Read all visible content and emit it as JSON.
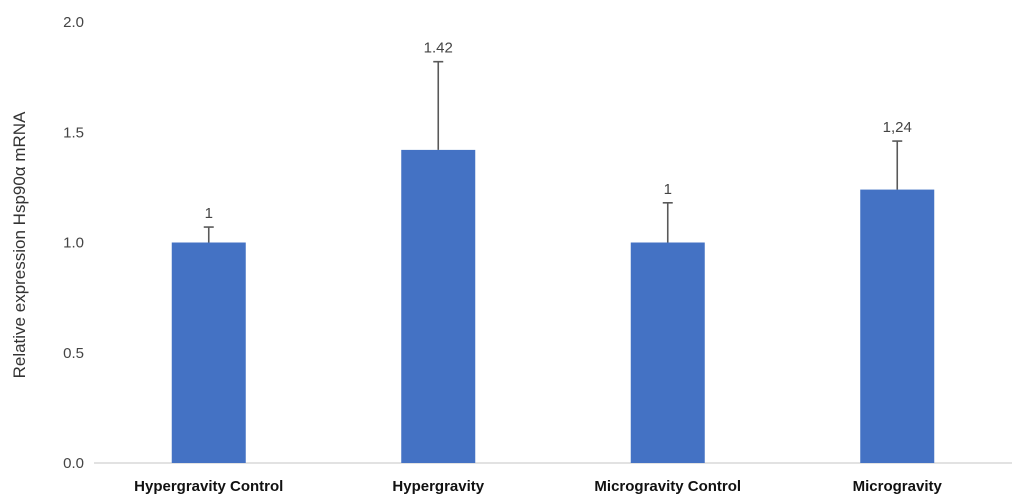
{
  "chart_data": {
    "type": "bar",
    "title": "",
    "xlabel": "",
    "ylabel": "Relative expression Hsp90α mRNA",
    "ylim": [
      0,
      2.0
    ],
    "yticks": [
      0.0,
      0.5,
      1.0,
      1.5,
      2.0
    ],
    "ytick_labels": [
      "0.0",
      "0.5",
      "1.0",
      "1.5",
      "2.0"
    ],
    "categories": [
      "Hypergravity Control",
      "Hypergravity",
      "Microgravity Control",
      "Microgravity"
    ],
    "values": [
      1.0,
      1.42,
      1.0,
      1.24
    ],
    "error_upper": [
      0.07,
      0.4,
      0.18,
      0.22
    ],
    "data_labels": [
      "1",
      "1.42",
      "1",
      "1,24"
    ],
    "grid": false,
    "legend": "none",
    "colors": {
      "bar": "#4472C4",
      "error_bar": "#595959",
      "axis_line": "#d9d9d9"
    }
  }
}
